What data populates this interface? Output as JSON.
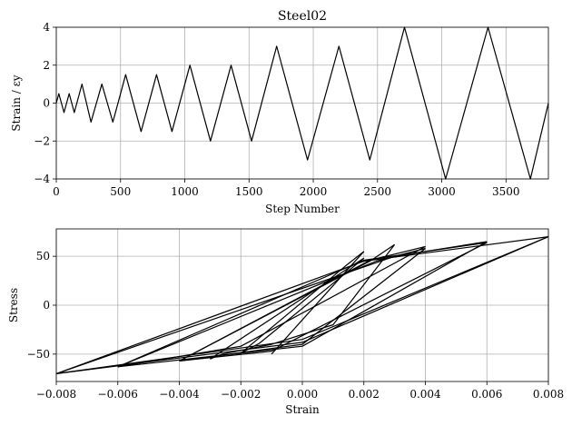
{
  "chart_data": [
    {
      "type": "line",
      "title": "Steel02",
      "xlabel": "Step Number",
      "ylabel": "Strain / εy",
      "xlim": [
        0,
        3830
      ],
      "ylim": [
        -4,
        4
      ],
      "xticks": [
        0,
        500,
        1000,
        1500,
        2000,
        2500,
        3000,
        3500
      ],
      "yticks": [
        -4,
        -2,
        0,
        2,
        4
      ],
      "xtick_labels": [
        "0",
        "500",
        "1000",
        "1500",
        "2000",
        "2500",
        "3000",
        "3500"
      ],
      "ytick_labels": [
        "−4",
        "−2",
        "0",
        "2",
        "4"
      ],
      "grid": true,
      "series": [
        {
          "x": [
            0,
            20,
            60,
            100,
            140,
            200,
            270,
            355,
            440,
            540,
            660,
            780,
            900,
            1040,
            1200,
            1360,
            1520,
            1715,
            1955,
            2200,
            2440,
            2710,
            3030,
            3360,
            3690,
            3830
          ],
          "y": [
            0,
            0.5,
            -0.5,
            0.5,
            -0.5,
            1,
            -1,
            1,
            -1,
            1.5,
            -1.5,
            1.5,
            -1.5,
            2,
            -2,
            2,
            -2,
            3,
            -3,
            3,
            -3,
            4,
            -4,
            4,
            -4,
            0
          ]
        }
      ]
    },
    {
      "type": "line",
      "title": "",
      "xlabel": "Strain",
      "ylabel": "Stress",
      "xlim": [
        -0.008,
        0.008
      ],
      "ylim": [
        -78,
        78
      ],
      "xticks": [
        -0.008,
        -0.006,
        -0.004,
        -0.002,
        0,
        0.002,
        0.004,
        0.006,
        0.008
      ],
      "yticks": [
        -50,
        0,
        50
      ],
      "xtick_labels": [
        "−0.008",
        "−0.006",
        "−0.004",
        "−0.002",
        "0.000",
        "0.002",
        "0.004",
        "0.006",
        "0.008"
      ],
      "ytick_labels": [
        "−50",
        "0",
        "50"
      ],
      "grid": true,
      "series": [
        {
          "x": [
            -0.001,
            0.002
          ],
          "y": [
            -50,
            55
          ]
        },
        {
          "x": [
            0.002,
            0.0014,
            -0.002
          ],
          "y": [
            55,
            40,
            -49
          ]
        },
        {
          "x": [
            -0.002,
            -0.0014,
            0.002
          ],
          "y": [
            -49,
            -39,
            48
          ]
        },
        {
          "x": [
            0.002,
            0.0015,
            -0.003
          ],
          "y": [
            48,
            38,
            -55
          ]
        },
        {
          "x": [
            -0.003,
            -0.0026,
            -0.001,
            0.001,
            0.003
          ],
          "y": [
            -55,
            -50,
            -40,
            -20,
            62
          ]
        },
        {
          "x": [
            0.003,
            0.0022,
            -0.004
          ],
          "y": [
            62,
            45,
            -57
          ]
        },
        {
          "x": [
            -0.004,
            0.0,
            0.004
          ],
          "y": [
            -57,
            -40,
            58
          ]
        },
        {
          "x": [
            0.004,
            0.0024,
            -0.006
          ],
          "y": [
            58,
            45,
            -63
          ]
        },
        {
          "x": [
            -0.006,
            -0.002,
            0.004
          ],
          "y": [
            -63,
            -42,
            60
          ]
        },
        {
          "x": [
            0.004,
            0.0022,
            -0.004
          ],
          "y": [
            60,
            46,
            -57
          ]
        },
        {
          "x": [
            -0.004,
            -0.001,
            0.006
          ],
          "y": [
            -57,
            -47,
            64
          ]
        },
        {
          "x": [
            0.006,
            0.002,
            -0.006
          ],
          "y": [
            64,
            46,
            -63
          ]
        },
        {
          "x": [
            -0.006,
            0.0,
            0.006
          ],
          "y": [
            -63,
            -42,
            65
          ]
        },
        {
          "x": [
            0.006,
            0.003,
            -0.008
          ],
          "y": [
            65,
            50,
            -70
          ]
        },
        {
          "x": [
            -0.008,
            0.0,
            0.008
          ],
          "y": [
            -70,
            -38,
            70
          ]
        },
        {
          "x": [
            0.008,
            0.002,
            -0.008
          ],
          "y": [
            70,
            45,
            -70
          ]
        },
        {
          "x": [
            -0.008,
            0.0,
            0.008
          ],
          "y": [
            -70,
            -35,
            70
          ]
        }
      ]
    }
  ]
}
